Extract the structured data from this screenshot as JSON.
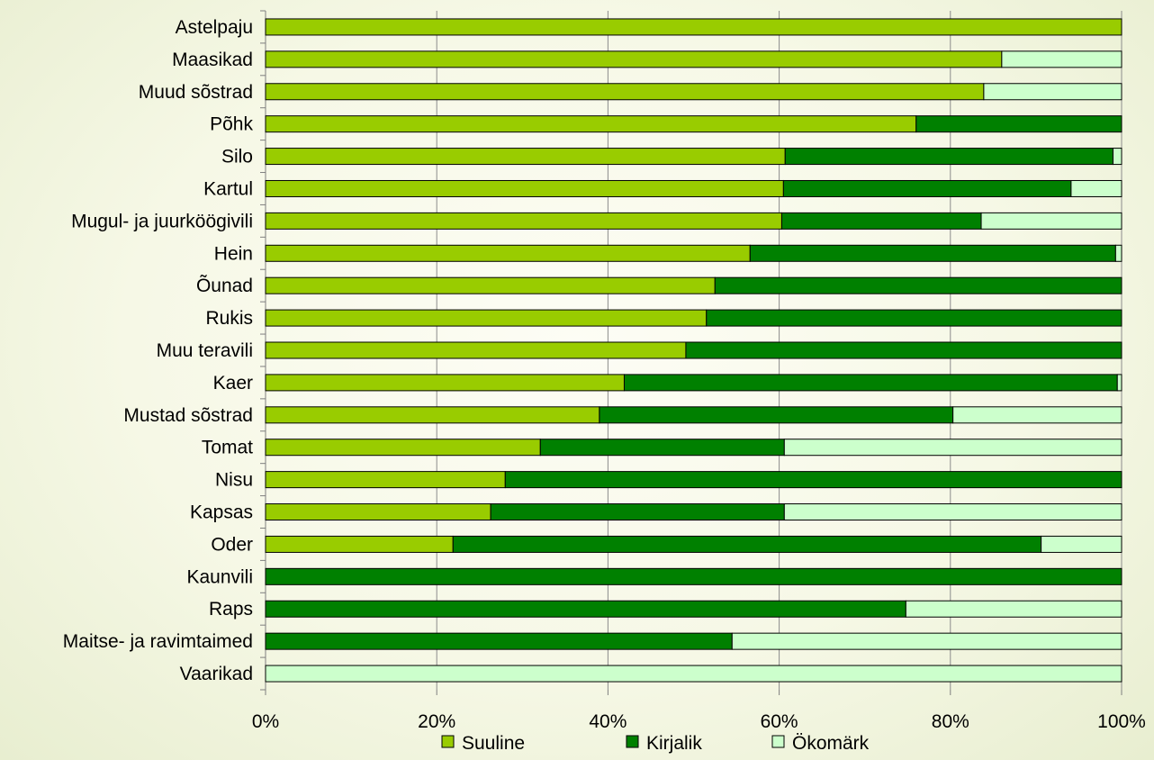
{
  "chart_data": {
    "type": "bar",
    "orientation": "horizontal",
    "stacked": "percent",
    "title": "",
    "xlabel": "",
    "ylabel": "",
    "xlim": [
      0,
      100
    ],
    "ticks": [
      "0%",
      "20%",
      "40%",
      "60%",
      "80%",
      "100%"
    ],
    "grid": "vertical",
    "legend_position": "bottom",
    "categories": [
      "Astelpaju",
      "Maasikad",
      "Muud sõstrad",
      "Põhk",
      "Silo",
      "Kartul",
      "Mugul- ja juurköögivili",
      "Hein",
      "Õunad",
      "Rukis",
      "Muu teravili",
      "Kaer",
      "Mustad sõstrad",
      "Tomat",
      "Nisu",
      "Kapsas",
      "Oder",
      "Kaunvili",
      "Raps",
      "Maitse- ja ravimtaimed",
      "Vaarikad"
    ],
    "series": [
      {
        "name": "Suuline",
        "color": "#99cc00",
        "values": [
          100,
          86,
          83.9,
          76,
          60.7,
          60.5,
          60.3,
          56.6,
          52.5,
          51.5,
          49.1,
          41.9,
          39,
          32.1,
          28,
          26.3,
          21.9,
          0,
          0,
          0,
          0
        ]
      },
      {
        "name": "Kirjalik",
        "color": "#008000",
        "values": [
          0,
          0,
          0,
          24,
          38.3,
          33.6,
          23.3,
          42.7,
          47.5,
          48.5,
          50.9,
          57.6,
          41.3,
          28.5,
          72,
          34.3,
          68.7,
          100,
          74.8,
          54.5,
          0
        ]
      },
      {
        "name": "Ökomärk",
        "color": "#ccffcc",
        "values": [
          0,
          14,
          16.1,
          0,
          1,
          5.9,
          16.4,
          0.7,
          0,
          0,
          0,
          0.5,
          19.7,
          39.4,
          0,
          39.4,
          9.4,
          0,
          25.2,
          45.5,
          100
        ]
      }
    ]
  }
}
